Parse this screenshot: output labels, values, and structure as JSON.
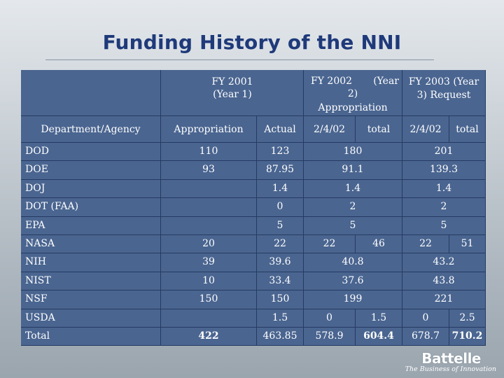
{
  "title": "Funding History of the NNI",
  "header": {
    "fy2001": "FY 2001 (Year 1)",
    "fy2002_a": "FY 2002",
    "fy2002_b": "(Year",
    "fy2002_c": "2)",
    "fy2002_d": "Appropriation",
    "fy2003": "FY 2003 (Year 3) Request",
    "col_dept": "Department/Agency",
    "col_appropriation": "Appropriation",
    "col_actual": "Actual",
    "col_fy02_date": "2/4/02",
    "col_fy02_total": "total",
    "col_fy03_date": "2/4/02",
    "col_fy03_total": "total"
  },
  "rows": [
    {
      "agency": "DOD",
      "approp": "110",
      "actual": "123",
      "fy02_date": "",
      "fy02_total": "180",
      "fy03_date": "",
      "fy03_total": "201"
    },
    {
      "agency": "DOE",
      "approp": "93",
      "actual": "87.95",
      "fy02_date": "",
      "fy02_total": "91.1",
      "fy03_date": "",
      "fy03_total": "139.3"
    },
    {
      "agency": "DOJ",
      "approp": "",
      "actual": "1.4",
      "fy02_date": "",
      "fy02_total": "1.4",
      "fy03_date": "",
      "fy03_total": "1.4"
    },
    {
      "agency": "DOT (FAA)",
      "approp": "",
      "actual": "0",
      "fy02_date": "",
      "fy02_total": "2",
      "fy03_date": "",
      "fy03_total": "2"
    },
    {
      "agency": "EPA",
      "approp": "",
      "actual": "5",
      "fy02_date": "",
      "fy02_total": "5",
      "fy03_date": "",
      "fy03_total": "5"
    },
    {
      "agency": "NASA",
      "approp": "20",
      "actual": "22",
      "fy02_date": "22",
      "fy02_total": "46",
      "fy03_date": "22",
      "fy03_total": "51"
    },
    {
      "agency": "NIH",
      "approp": "39",
      "actual": "39.6",
      "fy02_date": "",
      "fy02_total": "40.8",
      "fy03_date": "",
      "fy03_total": "43.2"
    },
    {
      "agency": "NIST",
      "approp": "10",
      "actual": "33.4",
      "fy02_date": "",
      "fy02_total": "37.6",
      "fy03_date": "",
      "fy03_total": "43.8"
    },
    {
      "agency": "NSF",
      "approp": "150",
      "actual": "150",
      "fy02_date": "",
      "fy02_total": "199",
      "fy03_date": "",
      "fy03_total": "221"
    },
    {
      "agency": "USDA",
      "approp": "",
      "actual": "1.5",
      "fy02_date": "0",
      "fy02_total": "1.5",
      "fy03_date": "0",
      "fy03_total": "2.5"
    },
    {
      "agency": "Total",
      "approp": "422",
      "actual": "463.85",
      "fy02_date": "578.9",
      "fy02_total": "604.4",
      "fy03_date": "678.7",
      "fy03_total": "710.2"
    }
  ],
  "logo": {
    "name": "Battelle",
    "tagline": "The Business of Innovation"
  },
  "colors": {
    "cell": "#4a6590",
    "border": "#243b63",
    "title": "#1f3a7a"
  }
}
